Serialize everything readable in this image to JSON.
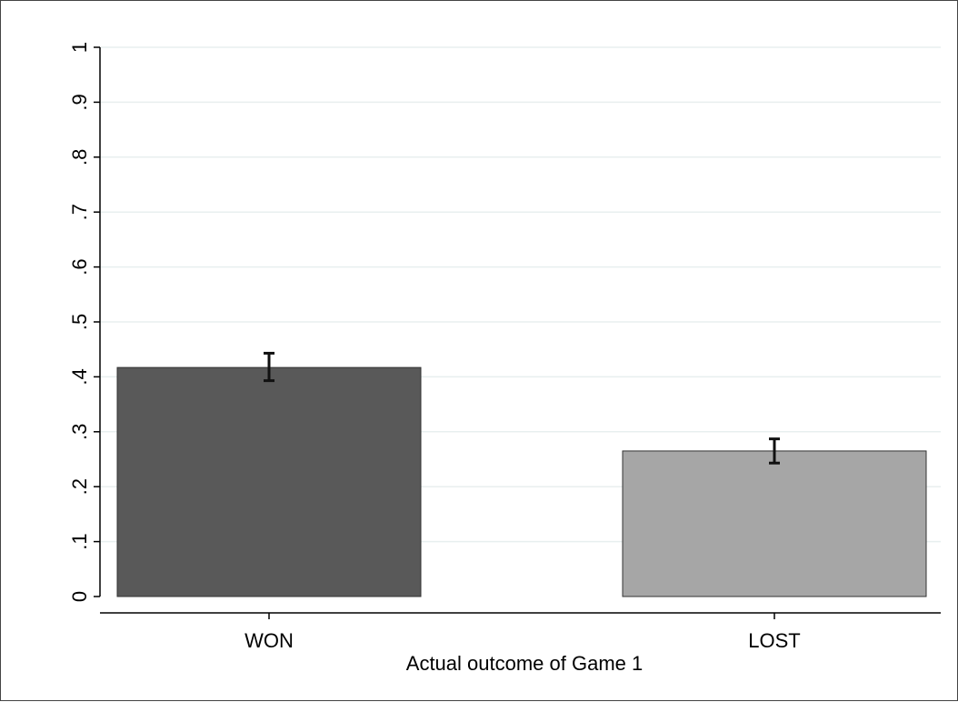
{
  "chart_data": {
    "type": "bar",
    "title": "",
    "xlabel": "Actual outcome of Game 1",
    "ylabel": "",
    "categories": [
      "WON",
      "LOST"
    ],
    "values": [
      0.417,
      0.265
    ],
    "error_bars": [
      {
        "low": 0.393,
        "high": 0.443
      },
      {
        "low": 0.243,
        "high": 0.287
      }
    ],
    "bar_colors": [
      "#595959",
      "#a6a6a6"
    ],
    "ylim": [
      0,
      1
    ],
    "yticks": [
      0,
      0.1,
      0.2,
      0.3,
      0.4,
      0.5,
      0.6,
      0.7,
      0.8,
      0.9,
      1
    ],
    "ytick_labels": [
      "0",
      ".1",
      ".2",
      ".3",
      ".4",
      ".5",
      ".6",
      ".7",
      ".8",
      ".9",
      "1"
    ],
    "grid": true,
    "grid_color": "#e8efef",
    "legend": "none"
  }
}
